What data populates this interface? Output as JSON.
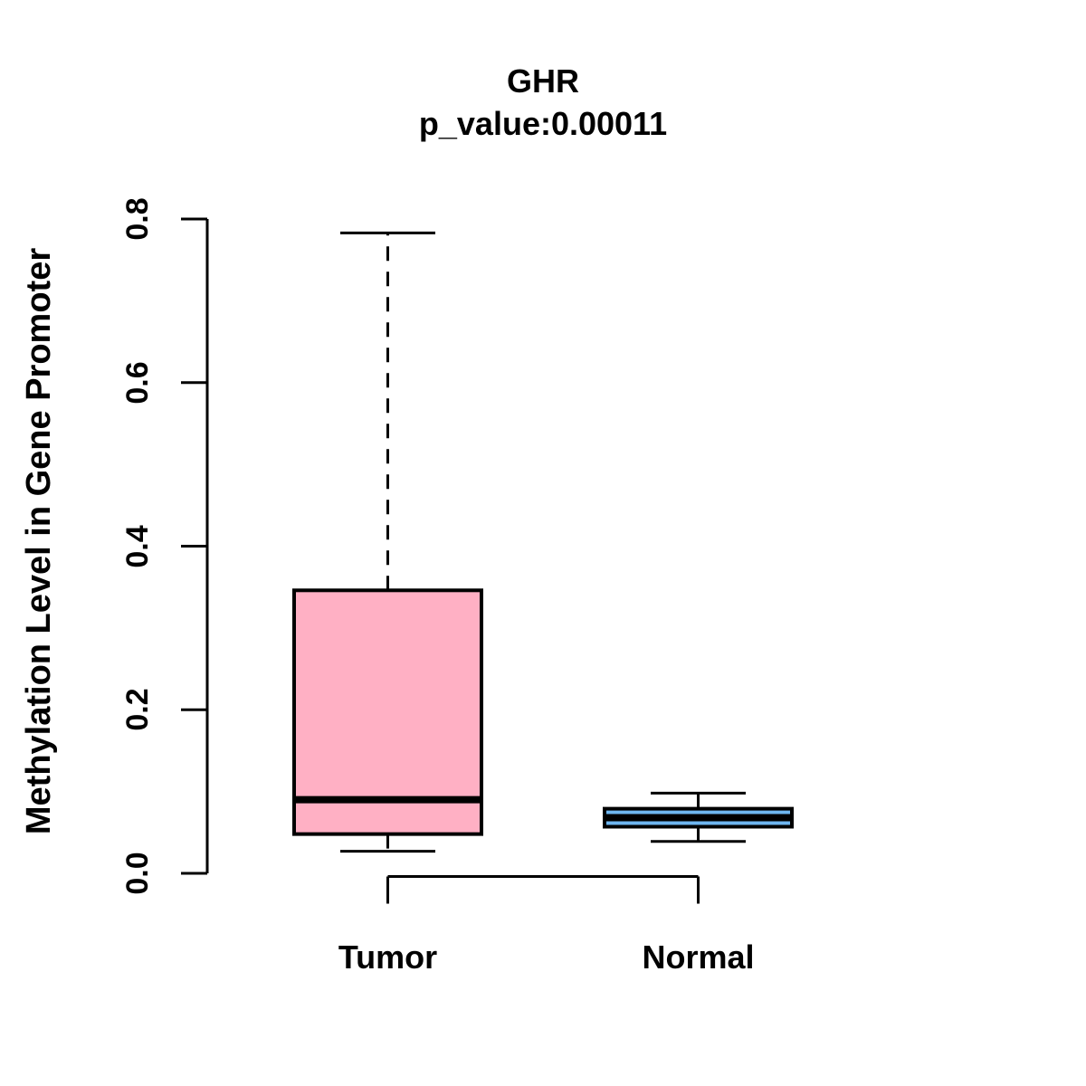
{
  "chart_data": {
    "type": "boxplot",
    "title": "GHR",
    "subtitle": "p_value:0.00011",
    "ylabel": "Methylation Level in Gene Promoter",
    "xlabel": "",
    "ylim": [
      0.0,
      0.8
    ],
    "yticks": [
      0.0,
      0.2,
      0.4,
      0.6,
      0.8
    ],
    "ytick_labels": [
      "0.0",
      "0.2",
      "0.4",
      "0.6",
      "0.8"
    ],
    "categories": [
      "Tumor",
      "Normal"
    ],
    "grid": false,
    "legend": "none",
    "whisker_line_style": "dashed",
    "series": [
      {
        "name": "Tumor",
        "box_color": "#FFB0C4",
        "whisker_low": 0.027,
        "q1": 0.048,
        "median": 0.09,
        "q3": 0.346,
        "whisker_high": 0.783,
        "outliers": []
      },
      {
        "name": "Normal",
        "box_color": "#6EB6F0",
        "whisker_low": 0.039,
        "q1": 0.057,
        "median": 0.068,
        "q3": 0.079,
        "whisker_high": 0.098,
        "outliers": []
      }
    ],
    "colors": {
      "stroke": "#000000",
      "background": "#FFFFFF",
      "tumor_fill": "#FFB0C4",
      "normal_fill": "#6EB6F0"
    }
  }
}
